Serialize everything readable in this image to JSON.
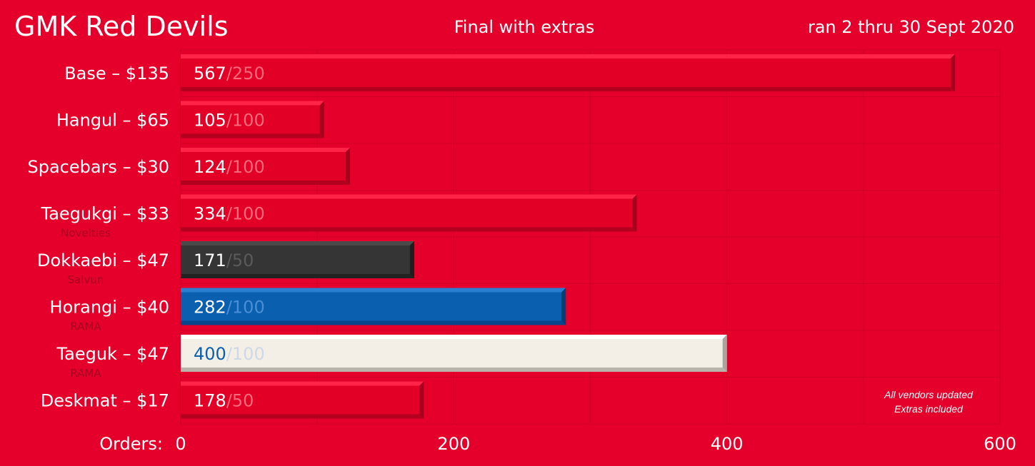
{
  "header": {
    "title": "GMK Red Devils",
    "subtitle": "Final with extras",
    "date_range": "ran 2 thru 30 Sept 2020"
  },
  "axis": {
    "label": "Orders:",
    "ticks": [
      "0",
      "200",
      "400",
      "600"
    ]
  },
  "notes": [
    "All vendors updated",
    "Extras included"
  ],
  "colors": {
    "background": "#e4002a",
    "bar_red": "#e20026",
    "bar_dark": "#353535",
    "bar_blue": "#0a5fae",
    "bar_white": "#f3efe6",
    "text_blue": "#0a5fae"
  },
  "chart_data": {
    "type": "bar",
    "orientation": "horizontal",
    "categories": [
      "Base – $135",
      "Hangul – $65",
      "Spacebars – $30",
      "Taegukgi – $33",
      "Dokkaebi – $47",
      "Horangi – $40",
      "Taeguk – $47",
      "Deskmat – $17"
    ],
    "sublabels": [
      "",
      "",
      "",
      "Novelties",
      "Salvun",
      "RAMA",
      "RAMA",
      ""
    ],
    "values": [
      567,
      105,
      124,
      334,
      171,
      282,
      400,
      178
    ],
    "targets": [
      250,
      100,
      100,
      100,
      50,
      100,
      100,
      50
    ],
    "value_labels": [
      "567",
      "105",
      "124",
      "334",
      "171",
      "282",
      "400",
      "178"
    ],
    "target_labels": [
      "/250",
      "/100",
      "/100",
      "/100",
      "/50",
      "/100",
      "/100",
      "/50"
    ],
    "bar_styles": [
      "red",
      "red",
      "red",
      "red",
      "dark",
      "blue",
      "white",
      "red"
    ],
    "xlim": [
      0,
      600
    ],
    "xticks": [
      0,
      200,
      400,
      600
    ],
    "grid": true
  }
}
